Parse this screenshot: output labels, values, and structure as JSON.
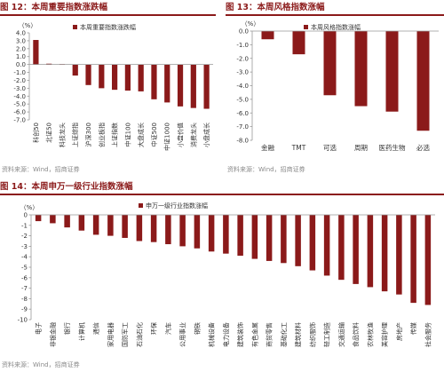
{
  "colors": {
    "bar": "#8b1a1a",
    "title": "#8b1a1a",
    "axis": "#333333",
    "source": "#8a8a8a"
  },
  "panels": {
    "p12": {
      "title": "图 12：本周重要指数涨跌幅",
      "source": "资料来源：Wind，招商证券"
    },
    "p13": {
      "title": "图 13：本周风格指数涨幅",
      "source": "资料来源：Wind，招商证券"
    },
    "p14": {
      "title": "图 14：本周申万一级行业指数涨幅",
      "source": "资料来源：Wind，招商证券"
    }
  },
  "chart_data": [
    {
      "type": "bar",
      "unit": "（%）",
      "legend": "本周重要指数涨跌幅",
      "legend_position": "top-right",
      "ylim": [
        -7.0,
        4.0
      ],
      "yticks": [
        4.0,
        3.0,
        2.0,
        1.0,
        0.0,
        -1.0,
        -2.0,
        -3.0,
        -4.0,
        -5.0,
        -6.0,
        -7.0
      ],
      "categories": [
        "科创50",
        "北证50",
        "科技龙头",
        "上证综指",
        "沪深300",
        "创业板指",
        "上证指数",
        "中证100",
        "大盘成长",
        "中证500",
        "中证1000",
        "小盘价值",
        "消费龙头",
        "小盘成长"
      ],
      "values": [
        3.1,
        0.1,
        0.05,
        -1.4,
        -2.6,
        -3.0,
        -3.2,
        -3.3,
        -3.4,
        -4.4,
        -4.8,
        -5.3,
        -5.5,
        -5.6
      ]
    },
    {
      "type": "bar",
      "unit": "（%）",
      "legend": "本周风格指数涨幅",
      "legend_position": "top-right",
      "ylim": [
        -8.0,
        0.0
      ],
      "yticks": [
        0.0,
        -1.0,
        -2.0,
        -3.0,
        -4.0,
        -5.0,
        -6.0,
        -7.0,
        -8.0
      ],
      "categories": [
        "金融",
        "TMT",
        "可选",
        "周期",
        "医药生物",
        "必选"
      ],
      "values": [
        -0.6,
        -1.7,
        -4.7,
        -5.5,
        -5.9,
        -7.3
      ]
    },
    {
      "type": "bar",
      "unit": "（%）",
      "legend": "申万一级行业指数涨幅",
      "legend_position": "top-left",
      "ylim": [
        -10,
        0
      ],
      "yticks": [
        0,
        -1,
        -2,
        -3,
        -4,
        -5,
        -6,
        -7,
        -8,
        -9,
        -10
      ],
      "categories": [
        "电子",
        "非银金融",
        "银行",
        "计算机",
        "通信",
        "家用电器",
        "国防军工",
        "石油石化",
        "环保",
        "汽车",
        "公用事业",
        "钢铁",
        "机械设备",
        "电力设备",
        "建筑装饰",
        "有色金属",
        "商贸零售",
        "基础化工",
        "建筑材料",
        "纺织服饰",
        "轻工制造",
        "交通运输",
        "食品饮料",
        "农林牧渔",
        "美容护理",
        "房地产",
        "传媒",
        "社会服务"
      ],
      "values": [
        -0.6,
        -0.8,
        -1.2,
        -1.5,
        -1.9,
        -2.0,
        -2.2,
        -2.5,
        -2.6,
        -2.8,
        -3.0,
        -3.2,
        -3.5,
        -3.7,
        -3.9,
        -4.2,
        -4.4,
        -4.6,
        -4.9,
        -5.3,
        -5.8,
        -6.2,
        -6.6,
        -6.9,
        -7.3,
        -7.6,
        -8.4,
        -8.6
      ]
    }
  ]
}
